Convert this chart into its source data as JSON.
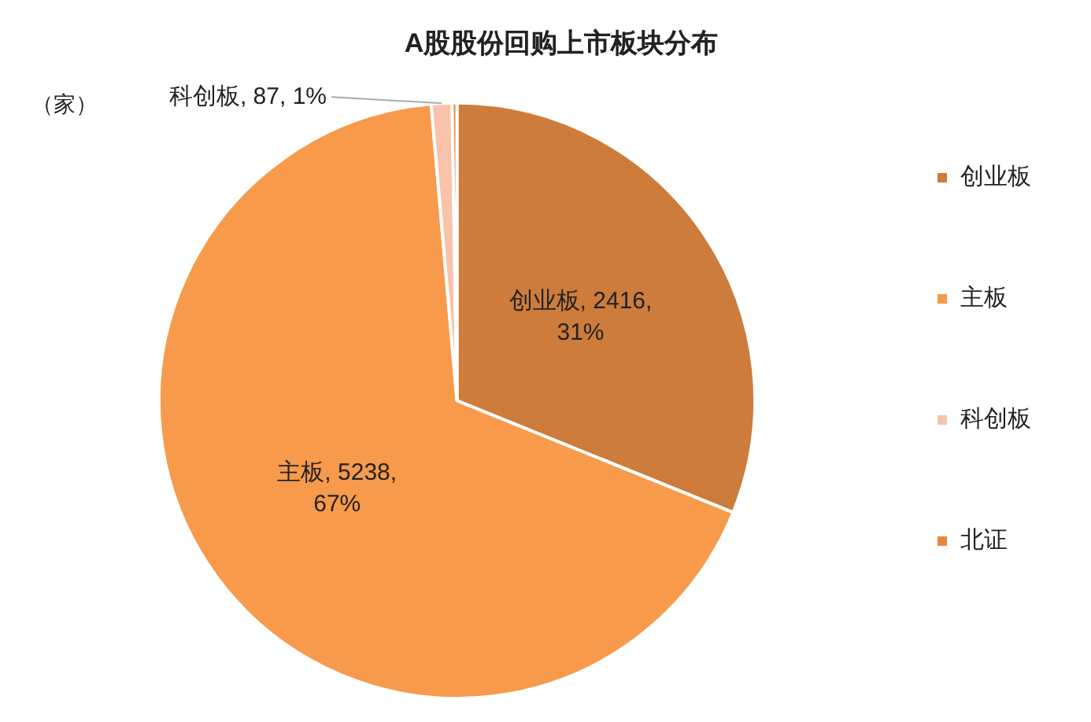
{
  "chart_data": {
    "type": "pie",
    "title": "A股股份回购上市板块分布",
    "categories": [
      "创业板",
      "主板",
      "科创板",
      "北证"
    ],
    "values": [
      2416,
      5238,
      87,
      20
    ],
    "colors": [
      "#cd7c3b",
      "#f79a4b",
      "#f8c3aa",
      "#e8873c"
    ],
    "value_labels": [
      "创业板, 2416, 31%",
      "主板, 5238, 67%",
      "科创板, 87, 1%",
      null
    ],
    "legend": "right",
    "annotations": [
      "（家）"
    ]
  }
}
